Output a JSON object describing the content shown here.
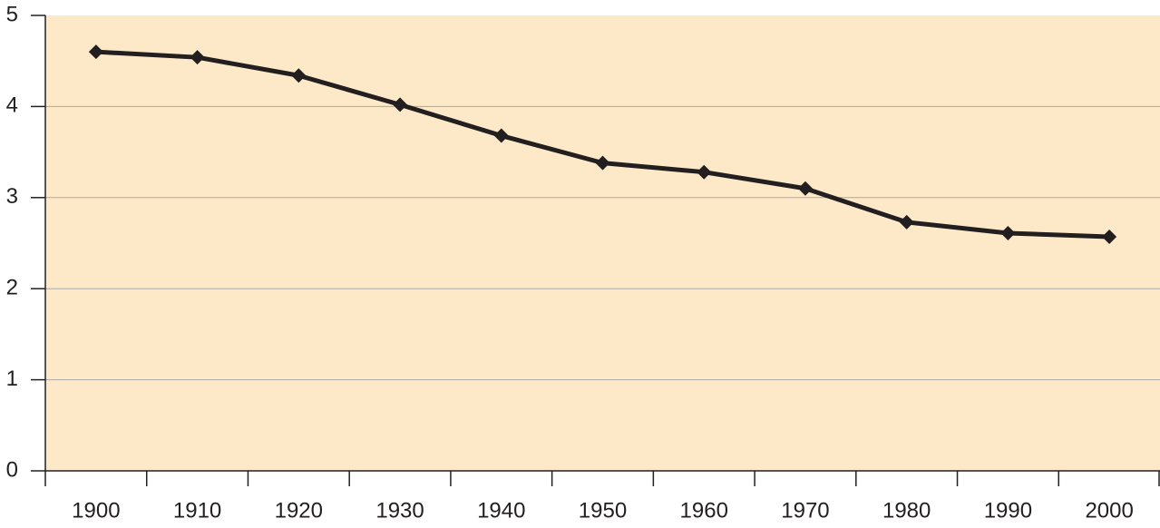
{
  "chart_data": {
    "type": "line",
    "categories": [
      "1900",
      "1910",
      "1920",
      "1930",
      "1940",
      "1950",
      "1960",
      "1970",
      "1980",
      "1990",
      "2000"
    ],
    "values": [
      4.6,
      4.54,
      4.34,
      4.02,
      3.68,
      3.38,
      3.28,
      3.1,
      2.73,
      2.61,
      2.57
    ],
    "color": "#231f20",
    "ylim": [
      0,
      5
    ],
    "yticks": [
      0,
      1,
      2,
      3,
      4,
      5
    ],
    "grid": true
  }
}
